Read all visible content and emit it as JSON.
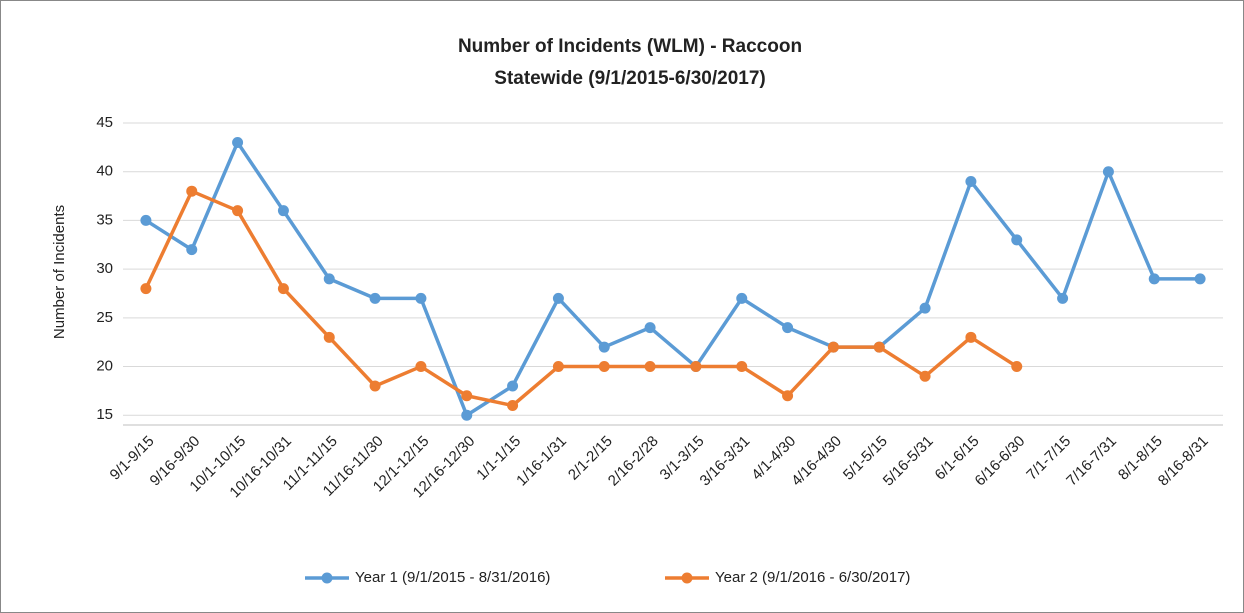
{
  "chart_data": {
    "type": "line",
    "title": "Number of Incidents (WLM) - Raccoon",
    "subtitle": "Statewide (9/1/2015-6/30/2017)",
    "y_label": "Number of Incidents",
    "categories": [
      "9/1-9/15",
      "9/16-9/30",
      "10/1-10/15",
      "10/16-10/31",
      "11/1-11/15",
      "11/16-11/30",
      "12/1-12/15",
      "12/16-12/30",
      "1/1-1/15",
      "1/16-1/31",
      "2/1-2/15",
      "2/16-2/28",
      "3/1-3/15",
      "3/16-3/31",
      "4/1-4/30",
      "4/16-4/30",
      "5/1-5/15",
      "5/16-5/31",
      "6/1-6/15",
      "6/16-6/30",
      "7/1-7/15",
      "7/16-7/31",
      "8/1-8/15",
      "8/16-8/31"
    ],
    "series": [
      {
        "name": "Year 1 (9/1/2015 - 8/31/2016)",
        "color": "#5b9bd5",
        "values": [
          35,
          32,
          43,
          36,
          29,
          27,
          27,
          15,
          18,
          27,
          22,
          24,
          20,
          27,
          24,
          22,
          22,
          26,
          39,
          33,
          27,
          40,
          29,
          29
        ]
      },
      {
        "name": "Year 2 (9/1/2016 - 6/30/2017)",
        "color": "#ed7d31",
        "values": [
          28,
          38,
          36,
          28,
          23,
          18,
          20,
          17,
          16,
          20,
          20,
          20,
          20,
          20,
          17,
          22,
          22,
          19,
          23,
          20,
          null,
          null,
          null,
          null
        ]
      }
    ],
    "ylim": [
      14,
      45
    ],
    "yticks": [
      15,
      20,
      25,
      30,
      35,
      40,
      45
    ],
    "grid": true,
    "legend": "bottom"
  }
}
